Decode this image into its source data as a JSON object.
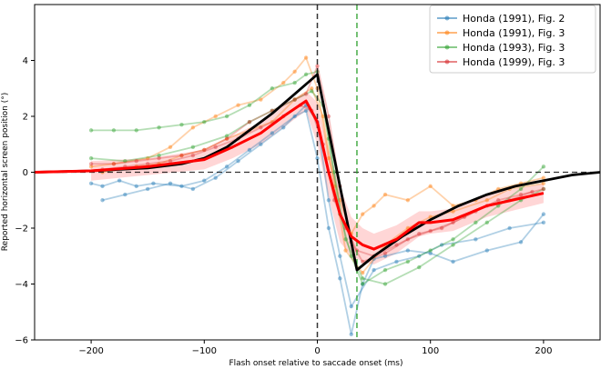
{
  "chart_data": {
    "type": "line",
    "title": "",
    "xlabel": "Flash onset relative to saccade onset (ms)",
    "ylabel": "Reported horizontal screen position (°)",
    "xlim": [
      -250,
      250
    ],
    "ylim": [
      -6,
      6
    ],
    "xticks": [
      -200,
      -100,
      0,
      100,
      200
    ],
    "yticks": [
      -6,
      -4,
      -2,
      0,
      2,
      4
    ],
    "xtick_labels": [
      "−200",
      "−100",
      "0",
      "100",
      "200"
    ],
    "ytick_labels": [
      "−6",
      "−4",
      "−2",
      "0",
      "2",
      "4"
    ],
    "reference_lines": {
      "saccade_onset_x": 0,
      "saccade_offset_x": 35,
      "zero_y": 0
    },
    "legend": [
      {
        "name": "Honda (1991), Fig. 2",
        "color": "#1f77b4"
      },
      {
        "name": "Honda (1991), Fig. 3",
        "color": "#ff7f0e"
      },
      {
        "name": "Honda (1993), Fig. 3",
        "color": "#2ca02c"
      },
      {
        "name": "Honda (1999), Fig. 3",
        "color": "#d62728"
      }
    ],
    "series": [
      {
        "name": "Honda (1991), Fig. 2",
        "color": "#1f77b4",
        "alpha": 0.35,
        "x": [
          -200,
          -190,
          -175,
          -160,
          -145,
          -120,
          -100,
          -80,
          -60,
          -40,
          -20,
          -10,
          0,
          10,
          20,
          30,
          40,
          50,
          60,
          80,
          100,
          120,
          150,
          180,
          200
        ],
        "y": [
          -0.4,
          -0.5,
          -0.3,
          -0.5,
          -0.4,
          -0.5,
          -0.3,
          0.2,
          0.8,
          1.4,
          2.0,
          2.2,
          0.5,
          -2.0,
          -3.8,
          -5.8,
          -4.0,
          -3.1,
          -3.0,
          -2.8,
          -2.9,
          -3.2,
          -2.8,
          -2.5,
          -1.5
        ]
      },
      {
        "name": "Honda (1991), Fig. 2",
        "color": "#1f77b4",
        "alpha": 0.35,
        "x": [
          -190,
          -170,
          -150,
          -130,
          -110,
          -90,
          -70,
          -50,
          -30,
          -10,
          0,
          10,
          20,
          30,
          50,
          70,
          90,
          110,
          140,
          170,
          200
        ],
        "y": [
          -1.0,
          -0.8,
          -0.6,
          -0.4,
          -0.6,
          -0.2,
          0.4,
          1.0,
          1.6,
          2.4,
          1.8,
          -1.0,
          -3.0,
          -4.8,
          -3.5,
          -3.2,
          -3.0,
          -2.6,
          -2.4,
          -2.0,
          -1.8
        ]
      },
      {
        "name": "Honda (1991), Fig. 3",
        "color": "#ff7f0e",
        "alpha": 0.35,
        "x": [
          -200,
          -180,
          -150,
          -130,
          -110,
          -90,
          -70,
          -50,
          -30,
          -20,
          -10,
          0,
          10,
          20,
          30,
          40,
          50,
          60,
          80,
          100,
          120,
          140,
          160,
          180,
          200
        ],
        "y": [
          0.2,
          0.3,
          0.5,
          0.9,
          1.6,
          2.0,
          2.4,
          2.6,
          3.2,
          3.6,
          4.1,
          3.0,
          0.5,
          -1.0,
          -2.2,
          -1.5,
          -1.2,
          -0.8,
          -1.0,
          -0.5,
          -1.2,
          -1.0,
          -0.6,
          -0.4,
          -0.2
        ]
      },
      {
        "name": "Honda (1991), Fig. 3",
        "color": "#ff7f0e",
        "alpha": 0.35,
        "x": [
          -190,
          -160,
          -140,
          -120,
          -100,
          -80,
          -60,
          -40,
          -20,
          -5,
          5,
          15,
          25,
          40,
          60,
          80,
          100,
          120,
          150,
          170,
          200
        ],
        "y": [
          0.0,
          0.2,
          0.3,
          0.6,
          0.8,
          1.2,
          1.5,
          1.8,
          2.6,
          3.0,
          2.0,
          -0.5,
          -2.8,
          -3.6,
          -2.6,
          -2.0,
          -1.6,
          -1.4,
          -1.0,
          -0.6,
          -0.4
        ]
      },
      {
        "name": "Honda (1993), Fig. 3",
        "color": "#2ca02c",
        "alpha": 0.35,
        "x": [
          -200,
          -180,
          -160,
          -140,
          -120,
          -100,
          -80,
          -60,
          -40,
          -20,
          -10,
          0,
          10,
          20,
          30,
          40,
          60,
          80,
          100,
          120,
          140,
          160,
          180,
          200
        ],
        "y": [
          1.5,
          1.5,
          1.5,
          1.6,
          1.7,
          1.8,
          2.0,
          2.4,
          3.0,
          3.2,
          3.5,
          3.6,
          1.2,
          -1.5,
          -3.0,
          -4.0,
          -3.5,
          -3.2,
          -2.8,
          -2.4,
          -1.8,
          -1.2,
          -0.6,
          0.2
        ]
      },
      {
        "name": "Honda (1993), Fig. 3",
        "color": "#2ca02c",
        "alpha": 0.35,
        "x": [
          -200,
          -170,
          -140,
          -110,
          -80,
          -60,
          -40,
          -20,
          -5,
          5,
          15,
          25,
          40,
          60,
          90,
          120,
          150,
          180,
          200
        ],
        "y": [
          0.5,
          0.4,
          0.6,
          0.9,
          1.3,
          1.8,
          2.2,
          2.6,
          2.9,
          2.4,
          0.0,
          -2.4,
          -3.8,
          -4.0,
          -3.4,
          -2.6,
          -1.8,
          -1.0,
          -0.6
        ]
      },
      {
        "name": "Honda (1999), Fig. 3",
        "color": "#d62728",
        "alpha": 0.3,
        "x": [
          -200,
          -180,
          -160,
          -140,
          -120,
          -100,
          -80,
          -60,
          -40,
          -20,
          -10,
          0,
          10,
          20,
          30,
          40,
          60,
          80,
          100,
          120,
          140,
          160,
          180,
          200
        ],
        "y": [
          0.3,
          0.3,
          0.4,
          0.5,
          0.6,
          0.8,
          1.2,
          1.8,
          2.2,
          2.6,
          2.8,
          3.8,
          2.0,
          -0.5,
          -2.5,
          -3.2,
          -2.9,
          -2.4,
          -2.1,
          -1.8,
          -1.4,
          -1.0,
          -0.8,
          -0.6
        ]
      },
      {
        "name": "Honda (1999), Fig. 3",
        "color": "#d62728",
        "alpha": 0.3,
        "x": [
          -190,
          -170,
          -150,
          -130,
          -110,
          -90,
          -70,
          -50,
          -30,
          -15,
          -5,
          5,
          15,
          25,
          35,
          50,
          70,
          90,
          110,
          130,
          150,
          170,
          190
        ],
        "y": [
          0.1,
          0.2,
          0.3,
          0.4,
          0.6,
          0.9,
          1.2,
          1.6,
          2.0,
          2.4,
          2.2,
          1.0,
          -1.0,
          -2.0,
          -2.8,
          -3.0,
          -2.6,
          -2.2,
          -2.0,
          -1.6,
          -1.2,
          -1.0,
          -0.7
        ]
      }
    ],
    "mean_line": {
      "name": "mean",
      "color": "#ff0000",
      "x": [
        -250,
        -200,
        -150,
        -100,
        -75,
        -50,
        -30,
        -10,
        0,
        10,
        20,
        30,
        40,
        50,
        70,
        90,
        100,
        120,
        150,
        200
      ],
      "y": [
        0.0,
        0.05,
        0.2,
        0.45,
        0.9,
        1.4,
        2.0,
        2.55,
        1.8,
        0.0,
        -1.5,
        -2.3,
        -2.6,
        -2.75,
        -2.4,
        -1.8,
        -1.8,
        -1.7,
        -1.2,
        -0.75
      ]
    },
    "mean_band": {
      "x": [
        -200,
        -150,
        -100,
        -75,
        -50,
        -30,
        -10,
        0,
        10,
        20,
        30,
        40,
        50,
        70,
        90,
        100,
        120,
        150,
        200
      ],
      "upper": [
        0.4,
        0.5,
        0.8,
        1.3,
        1.8,
        2.4,
        2.9,
        2.5,
        0.8,
        -0.5,
        -1.6,
        -2.0,
        -2.2,
        -1.9,
        -1.4,
        -1.4,
        -1.3,
        -0.8,
        -0.4
      ],
      "lower": [
        -0.3,
        -0.1,
        0.1,
        0.5,
        1.0,
        1.6,
        2.2,
        1.0,
        -0.9,
        -2.5,
        -3.0,
        -3.2,
        -3.3,
        -2.9,
        -2.3,
        -2.2,
        -2.1,
        -1.6,
        -1.1
      ]
    },
    "model_line": {
      "name": "model",
      "color": "#000000",
      "x": [
        -250,
        -200,
        -150,
        -120,
        -100,
        -80,
        -60,
        -40,
        -20,
        0,
        35,
        50,
        75,
        100,
        125,
        150,
        175,
        200,
        225,
        250
      ],
      "y": [
        0.0,
        0.05,
        0.15,
        0.3,
        0.5,
        0.9,
        1.5,
        2.1,
        2.8,
        3.5,
        -3.5,
        -3.0,
        -2.3,
        -1.7,
        -1.2,
        -0.8,
        -0.5,
        -0.3,
        -0.1,
        0.0
      ]
    }
  }
}
